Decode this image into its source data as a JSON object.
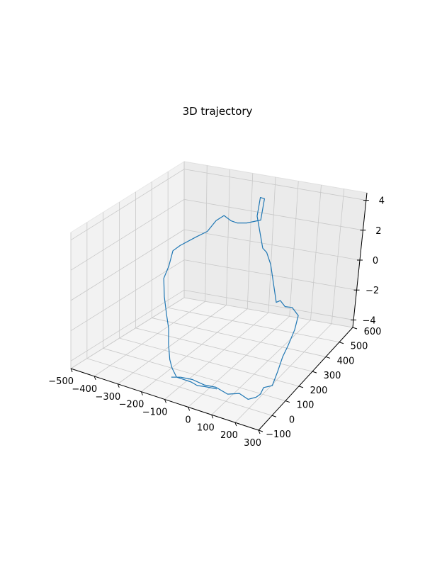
{
  "chart_data": {
    "type": "line",
    "title": "3D trajectory",
    "xlabel": "",
    "ylabel": "",
    "zlabel": "",
    "grid": true,
    "xlim": [
      -500,
      300
    ],
    "ylim": [
      -100,
      600
    ],
    "zlim": [
      -4.5,
      4.5
    ],
    "x_ticks": [
      "−500",
      "−400",
      "−300",
      "−200",
      "−100",
      "0",
      "100",
      "200",
      "300"
    ],
    "y_ticks": [
      "−100",
      "0",
      "100",
      "200",
      "300",
      "400",
      "500",
      "600"
    ],
    "z_ticks": [
      "−4",
      "−2",
      "0",
      "2",
      "4"
    ],
    "series": [
      {
        "color": "#1f77b4",
        "x": [
          -120,
          -80,
          -30,
          20,
          70,
          120,
          170,
          200,
          220,
          225,
          225,
          200,
          160,
          120,
          80,
          40,
          0,
          -40,
          -70,
          -90,
          -80,
          -90,
          -100,
          -110,
          -120,
          -120,
          -130,
          -160,
          -220,
          -260,
          -300,
          -330,
          -350,
          -360,
          -380,
          -400,
          -410,
          -400,
          -380,
          -350,
          -320,
          -290,
          -270,
          -230,
          -200,
          -160,
          -120,
          -70,
          -30,
          10,
          60
        ],
        "y": [
          -30,
          -30,
          -30,
          -30,
          -30,
          -30,
          -30,
          -20,
          0,
          20,
          40,
          130,
          220,
          310,
          400,
          500,
          580,
          600,
          600,
          600,
          560,
          540,
          530,
          520,
          500,
          520,
          560,
          580,
          580,
          580,
          600,
          600,
          580,
          540,
          500,
          430,
          400,
          360,
          300,
          260,
          230,
          200,
          170,
          120,
          90,
          60,
          40,
          20,
          0,
          -10,
          -10
        ],
        "z": [
          -3.6,
          -3.4,
          -3.3,
          -3.4,
          -3.3,
          -3.5,
          -3.2,
          -3.5,
          -3.4,
          -3.3,
          -3.0,
          -3.6,
          -3.5,
          -3.3,
          -3.4,
          -3.2,
          -3.0,
          -2.8,
          -2.9,
          -2.6,
          -2.4,
          0.2,
          1.0,
          1.3,
          3.5,
          4.6,
          4.2,
          2.5,
          2.0,
          1.8,
          1.6,
          1.8,
          1.5,
          1.0,
          0.8,
          0.6,
          0.4,
          -0.3,
          -0.6,
          -1.4,
          -2.2,
          -2.8,
          -3.5,
          -4.0,
          -4.2,
          -4.4,
          -4.2,
          -4.0,
          -3.9,
          -3.7,
          -3.6
        ]
      }
    ]
  }
}
